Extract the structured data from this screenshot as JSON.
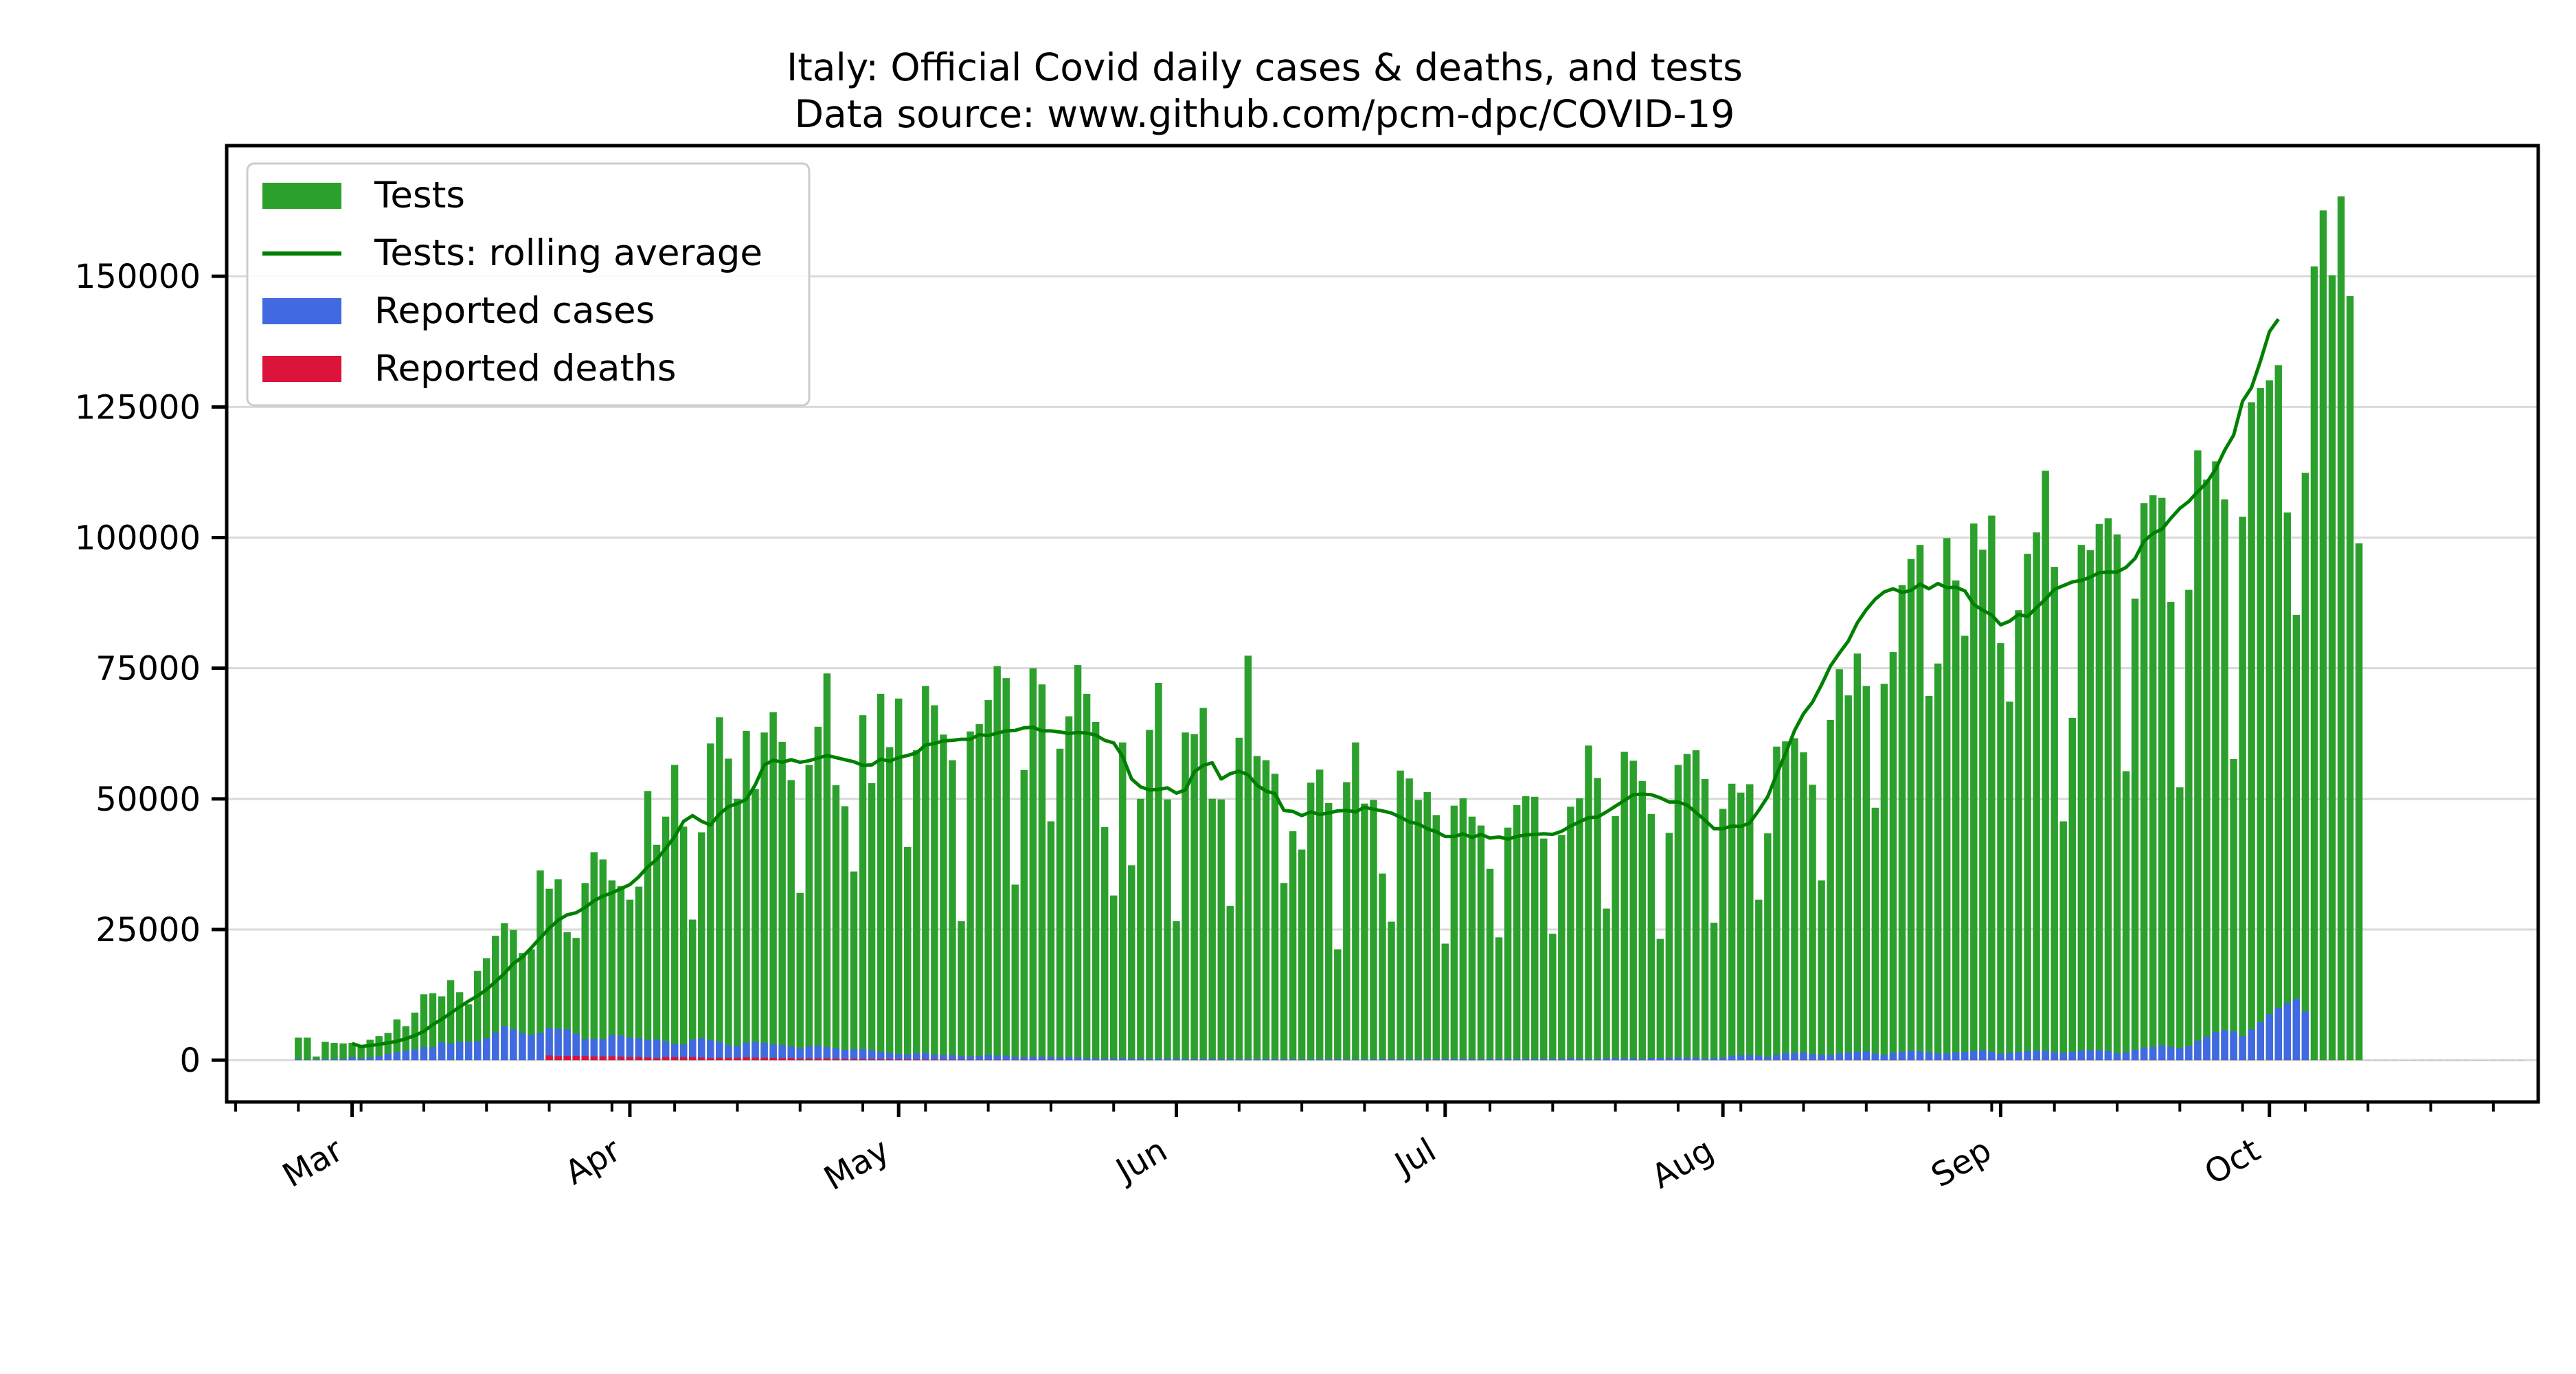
{
  "chart_data": {
    "type": "bar",
    "title": "Italy: Official Covid daily cases & deaths, and tests",
    "subtitle": "Data source: www.github.com/pcm-dpc/COVID-19",
    "xlabel": "",
    "ylabel": "",
    "x_start": "2020-02-24",
    "x_end": "2020-10-18",
    "xlim": [
      "2020-02-16",
      "2020-10-31"
    ],
    "ylim": [
      -8000,
      175000
    ],
    "y_ticks": [
      0,
      25000,
      50000,
      75000,
      100000,
      125000,
      150000
    ],
    "y_tick_labels": [
      "0",
      "25000",
      "50000",
      "75000",
      "100000",
      "125000",
      "150000"
    ],
    "x_ticks": [
      "2020-03-01",
      "2020-04-01",
      "2020-05-01",
      "2020-06-01",
      "2020-07-01",
      "2020-08-01",
      "2020-09-01",
      "2020-10-01"
    ],
    "x_tick_labels": [
      "Mar",
      "Apr",
      "May",
      "Jun",
      "Jul",
      "Aug",
      "Sep",
      "Oct"
    ],
    "grid": "horizontal",
    "legend_position": "top-left",
    "colors": {
      "tests": "#2ca02c",
      "tests_avg": "#008000",
      "cases": "#4169e1",
      "deaths": "#dc143c",
      "grid": "#d9d9d9"
    },
    "series": [
      {
        "name": "Tests",
        "kind": "bar",
        "values": [
          4300,
          4300,
          700,
          3500,
          3300,
          3200,
          3300,
          2600,
          3900,
          4600,
          5200,
          7800,
          6500,
          9100,
          12600,
          12800,
          12200,
          15300,
          13000,
          10700,
          17100,
          19500,
          23800,
          26200,
          24900,
          20500,
          21200,
          36300,
          32800,
          34600,
          24500,
          23400,
          33900,
          39800,
          38400,
          34400,
          33300,
          30700,
          33200,
          51500,
          41200,
          46600,
          56500,
          44700,
          26900,
          43600,
          60600,
          65600,
          57700,
          50000,
          63000,
          51900,
          62700,
          66600,
          60900,
          53600,
          32000,
          56500,
          63800,
          74000,
          52600,
          48600,
          36100,
          66000,
          53000,
          70100,
          59900,
          69200,
          40800,
          59300,
          71600,
          67900,
          62300,
          57400,
          26600,
          62900,
          64300,
          68900,
          75400,
          73100,
          33600,
          55500,
          75000,
          71900,
          45700,
          59600,
          65800,
          75600,
          70100,
          64700,
          44600,
          31500,
          60800,
          37300,
          50000,
          63200,
          72200,
          49900,
          26600,
          62700,
          62400,
          67400,
          50000,
          49900,
          29500,
          61700,
          77400,
          58200,
          57400,
          54800,
          33900,
          43800,
          40300,
          53100,
          55600,
          49200,
          21200,
          53200,
          60800,
          49100,
          49800,
          35700,
          26500,
          55400,
          53900,
          49800,
          51300,
          46900,
          22300,
          48700,
          50100,
          46600,
          44900,
          36600,
          23500,
          44500,
          48800,
          50500,
          50400,
          42400,
          24200,
          43100,
          48500,
          50100,
          60200,
          54000,
          29000,
          46700,
          59000,
          57300,
          53400,
          47100,
          23200,
          43500,
          56500,
          58600,
          59300,
          53800,
          26300,
          48100,
          52900,
          51200,
          52800,
          30700,
          43400,
          60000,
          61000,
          61600,
          58900,
          52700,
          34400,
          65100,
          74800,
          69800,
          77800,
          71600,
          48300,
          72000,
          78100,
          90900,
          95900,
          98600,
          69700,
          75900,
          99900,
          91800,
          81200,
          102700,
          97700,
          104200,
          79800,
          68600,
          86100,
          96900,
          101000,
          112800,
          94400,
          45700,
          65500,
          98600,
          97600,
          102600,
          103700,
          100600,
          55300,
          88300,
          106600,
          108100,
          107600,
          87700,
          52200,
          90000,
          116700,
          111100,
          114600,
          107300,
          57600,
          104000,
          125900,
          128600,
          130100,
          133000,
          104800,
          85200,
          112400,
          151900,
          162600,
          150200,
          165300,
          146200,
          98900
        ]
      },
      {
        "name": "Tests: rolling average",
        "kind": "line",
        "start": "2020-03-01",
        "values": [
          3200,
          2600,
          2800,
          3000,
          3300,
          3600,
          4100,
          4700,
          5500,
          6800,
          7800,
          9000,
          10200,
          11300,
          12300,
          13500,
          15000,
          16600,
          18500,
          19700,
          21500,
          23400,
          25200,
          26800,
          27800,
          28200,
          29200,
          30500,
          31400,
          32000,
          32800,
          33600,
          35100,
          37000,
          38400,
          40500,
          42800,
          45700,
          46800,
          45700,
          45000,
          47100,
          48500,
          49100,
          49900,
          52700,
          56500,
          57400,
          57000,
          57500,
          57000,
          57300,
          57800,
          58300,
          57900,
          57500,
          57100,
          56400,
          56500,
          57600,
          57200,
          57900,
          58300,
          58800,
          60300,
          60600,
          61100,
          61200,
          61400,
          61400,
          62300,
          62100,
          62600,
          63000,
          63100,
          63600,
          63700,
          63000,
          63000,
          62800,
          62500,
          62700,
          62600,
          62200,
          61200,
          60700,
          58100,
          53800,
          52300,
          51700,
          51800,
          52100,
          51100,
          51700,
          55200,
          56400,
          56900,
          53800,
          54800,
          55300,
          54600,
          52600,
          51500,
          51000,
          47800,
          47600,
          46800,
          47500,
          47000,
          47300,
          47700,
          47800,
          47500,
          48400,
          48000,
          47700,
          47300,
          46500,
          45600,
          45200,
          44300,
          43700,
          42800,
          42800,
          43300,
          42600,
          43200,
          42500,
          42700,
          42300,
          42800,
          43100,
          43200,
          43300,
          43200,
          43800,
          44800,
          45600,
          46400,
          46500,
          47500,
          48600,
          49700,
          50800,
          50900,
          50800,
          50200,
          49400,
          49400,
          48800,
          47400,
          45900,
          44300,
          44300,
          44800,
          44700,
          45400,
          47800,
          50400,
          54700,
          58700,
          63100,
          66300,
          68500,
          71800,
          75400,
          77900,
          80200,
          83700,
          86200,
          88200,
          89600,
          90200,
          89500,
          89900,
          91100,
          90200,
          91200,
          90400,
          90500,
          89800,
          87200,
          86100,
          85200,
          83300,
          84000,
          85300,
          84900,
          86600,
          88200,
          90100,
          90800,
          91500,
          91800,
          92400,
          93300,
          93400,
          93400,
          94300,
          96000,
          99300,
          100800,
          101600,
          103700,
          105600,
          106900,
          108800,
          110500,
          113100,
          116700,
          119600,
          126100,
          128700,
          133800,
          139400,
          141800
        ]
      },
      {
        "name": "Reported cases",
        "kind": "bar",
        "values": [
          220,
          90,
          120,
          190,
          250,
          240,
          560,
          350,
          500,
          780,
          1250,
          1490,
          1800,
          2050,
          2500,
          2500,
          3400,
          3200,
          3500,
          3500,
          3600,
          4200,
          5300,
          6500,
          5900,
          5200,
          4800,
          5200,
          6150,
          5950,
          5900,
          5100,
          4050,
          4100,
          4050,
          4800,
          4700,
          4300,
          4200,
          3900,
          3950,
          3600,
          3100,
          3000,
          3950,
          4200,
          3800,
          3500,
          2900,
          2700,
          3350,
          3500,
          3300,
          3000,
          2900,
          2600,
          2250,
          2700,
          2800,
          2500,
          2250,
          2000,
          2100,
          2100,
          1900,
          1600,
          1400,
          1200,
          1150,
          1300,
          1400,
          1100,
          1000,
          1000,
          800,
          750,
          800,
          1000,
          900,
          850,
          650,
          550,
          650,
          700,
          600,
          500,
          580,
          520,
          400,
          350,
          300,
          330,
          380,
          320,
          340,
          280,
          300,
          290,
          330,
          250,
          200,
          230,
          260,
          240,
          210,
          180,
          170,
          190,
          220,
          200,
          210,
          160,
          140,
          150,
          180,
          200,
          190,
          170,
          130,
          140,
          190,
          210,
          230,
          180,
          150,
          160,
          190,
          200,
          230,
          250,
          270,
          200,
          180,
          250,
          280,
          290,
          250,
          240,
          230,
          260,
          280,
          290,
          380,
          300,
          200,
          250,
          370,
          400,
          360,
          350,
          250,
          400,
          420,
          440,
          510,
          480,
          460,
          320,
          400,
          480,
          850,
          940,
          1000,
          880,
          600,
          1000,
          1370,
          1410,
          1460,
          1200,
          1050,
          1000,
          1300,
          1450,
          1600,
          1700,
          1300,
          1000,
          1400,
          1600,
          1800,
          1700,
          1500,
          1300,
          1300,
          1500,
          1600,
          1750,
          1900,
          1600,
          1250,
          1400,
          1600,
          1700,
          1800,
          1800,
          1500,
          1400,
          1600,
          1800,
          1900,
          1900,
          1750,
          1300,
          1500,
          2000,
          2400,
          2500,
          2850,
          2550,
          2300,
          2700,
          3700,
          4500,
          5400,
          5700,
          5500,
          4600,
          5900,
          7300,
          8800,
          10000,
          10900,
          11700,
          9300
        ]
      },
      {
        "name": "Reported deaths",
        "kind": "bar",
        "values": [
          0,
          0,
          0,
          0,
          0,
          0,
          0,
          0,
          0,
          0,
          0,
          0,
          0,
          0,
          0,
          0,
          0,
          0,
          0,
          0,
          0,
          0,
          0,
          0,
          0,
          0,
          0,
          0,
          900,
          770,
          810,
          830,
          800,
          730,
          720,
          760,
          680,
          580,
          600,
          500,
          400,
          600,
          590,
          570,
          610,
          500,
          410,
          450,
          430,
          440,
          550,
          480,
          470,
          420,
          380,
          400,
          300,
          320,
          340,
          350,
          300,
          250,
          250,
          220,
          200,
          180,
          170,
          150,
          140,
          130,
          120,
          110,
          100,
          90,
          80,
          70,
          60,
          60,
          50,
          50,
          40,
          40,
          40,
          40,
          30,
          30,
          30,
          30,
          20,
          20,
          20,
          20,
          20,
          20,
          20,
          20,
          20,
          20,
          20,
          20,
          20,
          20,
          20,
          20,
          20,
          20,
          20,
          20,
          20,
          20,
          20,
          20,
          20,
          20,
          20,
          20,
          20,
          20,
          20,
          20,
          20,
          20,
          20,
          20,
          20,
          20,
          20,
          20,
          20,
          20,
          20,
          20,
          20,
          20,
          20,
          20,
          20,
          20,
          20,
          20,
          20,
          20,
          20,
          20,
          20,
          20,
          20,
          20,
          20,
          20,
          20,
          20,
          20,
          20,
          20,
          20,
          20,
          20,
          20,
          20,
          20,
          20,
          20,
          20,
          20,
          20,
          20,
          20,
          20,
          20,
          20,
          20,
          20,
          20,
          20,
          20,
          20,
          20,
          20,
          20,
          20,
          20,
          20,
          20,
          20,
          20,
          20,
          20,
          20,
          20,
          20,
          20,
          20,
          20,
          20,
          20,
          20,
          20,
          20,
          20,
          20,
          20,
          20,
          20,
          20,
          20,
          20,
          20,
          20,
          20,
          20,
          20,
          20,
          20,
          20,
          20,
          20,
          20,
          20,
          20,
          20,
          20,
          20,
          20,
          20,
          20,
          20,
          20,
          20,
          20,
          20,
          20,
          20,
          20,
          20,
          20,
          20,
          20,
          20,
          20,
          20,
          20,
          20,
          20,
          20,
          20,
          20,
          20,
          20
        ]
      }
    ]
  }
}
